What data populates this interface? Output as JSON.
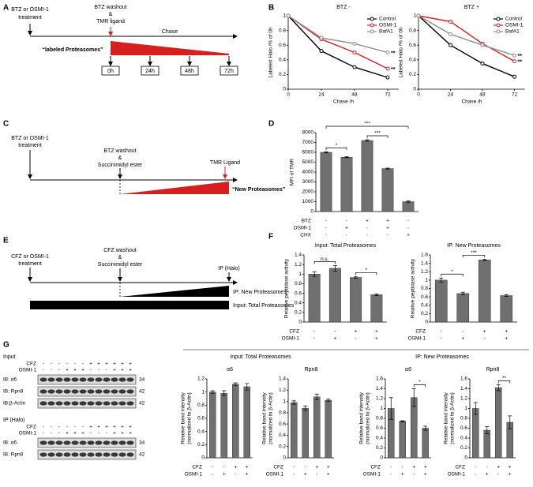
{
  "panel_letters": [
    "A",
    "B",
    "C",
    "D",
    "E",
    "F",
    "G"
  ],
  "diagram_a": {
    "start_label": [
      "BTZ or OSMI-1",
      "treatment"
    ],
    "washout_label": [
      "BTZ washout",
      "&",
      "TMR ligand"
    ],
    "chase": "Chase",
    "wedge_label": "“labeled Proteasomes”",
    "timepoints": [
      "0h",
      "24h",
      "48h",
      "72h"
    ]
  },
  "diagram_c": {
    "start_label": [
      "BTZ or OSMI-1",
      "treatment"
    ],
    "washout_label": [
      "BTZ washout",
      "&",
      "Succinimidyl ester"
    ],
    "end_label": "TMR Ligand",
    "wedge_label": "“New Proteasomes”"
  },
  "diagram_e": {
    "start_label": [
      "CFZ or OSMI-1",
      "treatment"
    ],
    "washout_label": [
      "CFZ washout",
      "&",
      "Succinimidyl ester"
    ],
    "end_label": "IP (Halo)",
    "wedge_label": "IP: New Proteasomes",
    "bar_label": "Input: Total Proteasomes"
  },
  "blot_g": {
    "sections": [
      {
        "title": "Input",
        "conditions": [
          {
            "name": "CFZ",
            "signs": [
              "-",
              "-",
              "-",
              "-",
              "-",
              "-",
              "+",
              "+",
              "+",
              "+",
              "+",
              "+"
            ]
          },
          {
            "name": "OSMI-1",
            "signs": [
              "-",
              "-",
              "-",
              "+",
              "+",
              "+",
              "-",
              "-",
              "-",
              "+",
              "+",
              "+"
            ]
          }
        ],
        "rows": [
          {
            "label": "IB: α6",
            "mw": "34"
          },
          {
            "label": "IB: Rpn8",
            "mw": "42"
          },
          {
            "label": "IB:β-Actin",
            "mw": "42"
          }
        ]
      },
      {
        "title": "IP (Halo)",
        "conditions": [
          {
            "name": "CFZ",
            "signs": [
              "-",
              "-",
              "-",
              "-",
              "-",
              "-",
              "+",
              "+",
              "+",
              "+",
              "+",
              "+"
            ]
          },
          {
            "name": "OSMI-1",
            "signs": [
              "-",
              "-",
              "-",
              "+",
              "+",
              "+",
              "-",
              "-",
              "-",
              "+",
              "+",
              "+"
            ]
          }
        ],
        "rows": [
          {
            "label": "IB: α6",
            "mw": "34"
          },
          {
            "label": "IB: Rpn8",
            "mw": "42"
          }
        ]
      }
    ]
  },
  "g_group_titles": [
    "Input: Total Proteasomes",
    "IP: New Proteasomes"
  ],
  "chart_data": [
    {
      "type": "line",
      "title": "BTZ -",
      "xlabel": "Chase /h",
      "ylabel": "Labeled Halo /% of 0h",
      "x": [
        0,
        24,
        48,
        72
      ],
      "xlim": [
        0,
        80
      ],
      "xticks": [
        0,
        24,
        48,
        72
      ],
      "ylim": [
        0,
        1
      ],
      "yticks": [
        0,
        0.2,
        0.4,
        0.6,
        0.8,
        1
      ],
      "legend": "upper right",
      "series": [
        {
          "name": "Control",
          "color": "#000000",
          "values": [
            1,
            0.52,
            0.3,
            0.16
          ]
        },
        {
          "name": "OSMI-1",
          "color": "#d62020",
          "values": [
            1,
            0.68,
            0.5,
            0.28
          ],
          "end_label": "**"
        },
        {
          "name": "BafA1",
          "color": "#8c8c8c",
          "values": [
            1,
            0.7,
            0.62,
            0.5
          ],
          "end_label": "**"
        }
      ]
    },
    {
      "type": "line",
      "title": "BTZ +",
      "xlabel": "Chase /h",
      "ylabel": "Labeled Halo /% of 0h",
      "x": [
        0,
        24,
        48,
        72
      ],
      "xlim": [
        0,
        80
      ],
      "xticks": [
        0,
        24,
        48,
        72
      ],
      "ylim": [
        0,
        1
      ],
      "yticks": [
        0,
        0.2,
        0.4,
        0.6,
        0.8,
        1
      ],
      "legend": "upper right",
      "series": [
        {
          "name": "Control",
          "color": "#000000",
          "values": [
            1,
            0.6,
            0.35,
            0.17
          ]
        },
        {
          "name": "OSMI-1",
          "color": "#d62020",
          "values": [
            1,
            0.92,
            0.62,
            0.38
          ],
          "end_label": "**"
        },
        {
          "name": "BafA1",
          "color": "#8c8c8c",
          "values": [
            1,
            0.75,
            0.6,
            0.46
          ],
          "end_label": "**"
        }
      ]
    },
    {
      "type": "bar",
      "ylabel": "MFI of TMR",
      "ylim": [
        0,
        8000
      ],
      "yticks": [
        0,
        1000,
        2000,
        3000,
        4000,
        5000,
        6000,
        7000,
        8000
      ],
      "color": "#707070",
      "values": [
        6000,
        5500,
        7200,
        4350,
        1000
      ],
      "errors": [
        60,
        50,
        80,
        50,
        80
      ],
      "conditions": [
        {
          "name": "BTZ",
          "signs": [
            "-",
            "-",
            "+",
            "+",
            "-"
          ]
        },
        {
          "name": "OSMI-1",
          "signs": [
            "-",
            "+",
            "-",
            "+",
            "-"
          ]
        },
        {
          "name": "CHX",
          "signs": [
            "-",
            "-",
            "-",
            "-",
            "+"
          ]
        }
      ],
      "significance": [
        {
          "pair": [
            0,
            1
          ],
          "label": "*"
        },
        {
          "pair": [
            2,
            3
          ],
          "label": "***"
        },
        {
          "pair": [
            0,
            4
          ],
          "label": "***"
        }
      ]
    },
    {
      "type": "bar",
      "title": "Input: Total Proteasomes",
      "ylabel": "Relative peptidase activity",
      "ylim": [
        0,
        1.4
      ],
      "yticks": [
        0,
        0.2,
        0.4,
        0.6,
        0.8,
        1,
        1.2,
        1.4
      ],
      "color": "#707070",
      "values": [
        1.0,
        1.12,
        0.93,
        0.57
      ],
      "errors": [
        0.05,
        0.06,
        0.02,
        0.02
      ],
      "conditions": [
        {
          "name": "CFZ",
          "signs": [
            "-",
            "-",
            "+",
            "+"
          ]
        },
        {
          "name": "OSMI-1",
          "signs": [
            "-",
            "+",
            "-",
            "+"
          ]
        }
      ],
      "significance": [
        {
          "pair": [
            0,
            1
          ],
          "label": "n.s."
        },
        {
          "pair": [
            2,
            3
          ],
          "label": "*"
        }
      ]
    },
    {
      "type": "bar",
      "title": "IP: New Proteasomes",
      "ylabel": "Relative peptidase activity",
      "ylim": [
        0,
        1.6
      ],
      "yticks": [
        0,
        0.2,
        0.4,
        0.6,
        0.8,
        1,
        1.2,
        1.4,
        1.6
      ],
      "color": "#707070",
      "values": [
        1.0,
        0.68,
        1.48,
        0.63
      ],
      "errors": [
        0.05,
        0.03,
        0.02,
        0.02
      ],
      "conditions": [
        {
          "name": "CFZ",
          "signs": [
            "-",
            "-",
            "+",
            "+"
          ]
        },
        {
          "name": "OSMI-1",
          "signs": [
            "-",
            "+",
            "-",
            "+"
          ]
        }
      ],
      "significance": [
        {
          "pair": [
            0,
            1
          ],
          "label": "*"
        },
        {
          "pair": [
            1,
            2
          ],
          "label": "***"
        }
      ]
    },
    {
      "type": "bar",
      "title": "α6",
      "ylabel": [
        "Relative band intensity",
        "(normalized to β-Actin)"
      ],
      "ylim": [
        0,
        1.2
      ],
      "yticks": [
        0,
        0.2,
        0.4,
        0.6,
        0.8,
        1,
        1.2
      ],
      "color": "#707070",
      "values": [
        1.0,
        0.98,
        1.12,
        1.08
      ],
      "errors": [
        0.02,
        0.04,
        0.02,
        0.05
      ],
      "conditions": [
        {
          "name": "CFZ",
          "signs": [
            "-",
            "-",
            "+",
            "+"
          ]
        },
        {
          "name": "OSMI-1",
          "signs": [
            "-",
            "+",
            "-",
            "+"
          ]
        }
      ]
    },
    {
      "type": "bar",
      "title": "Rpn8",
      "ylabel": [
        "Relative band intensity",
        "(normalized to β-Actin)"
      ],
      "ylim": [
        0,
        1.4
      ],
      "yticks": [
        0,
        0.2,
        0.4,
        0.6,
        0.8,
        1,
        1.2,
        1.4
      ],
      "color": "#707070",
      "values": [
        0.98,
        0.88,
        1.08,
        1.02
      ],
      "errors": [
        0.03,
        0.04,
        0.05,
        0.02
      ],
      "conditions": [
        {
          "name": "CFZ",
          "signs": [
            "-",
            "-",
            "+",
            "+"
          ]
        },
        {
          "name": "OSMI-1",
          "signs": [
            "-",
            "+",
            "-",
            "+"
          ]
        }
      ]
    },
    {
      "type": "bar",
      "title": "α6",
      "ylabel": [
        "Relative band intensity",
        "(normalized to β-Actin)"
      ],
      "ylim": [
        0,
        1.6
      ],
      "yticks": [
        0,
        0.2,
        0.4,
        0.6,
        0.8,
        1,
        1.2,
        1.4,
        1.6
      ],
      "color": "#707070",
      "values": [
        1.0,
        0.74,
        1.22,
        0.6
      ],
      "errors": [
        0.22,
        0.01,
        0.18,
        0.04
      ],
      "conditions": [
        {
          "name": "CFZ",
          "signs": [
            "-",
            "-",
            "+",
            "+"
          ]
        },
        {
          "name": "OSMI-1",
          "signs": [
            "-",
            "+",
            "-",
            "+"
          ]
        }
      ],
      "significance": [
        {
          "pair": [
            2,
            3
          ],
          "label": "*"
        }
      ]
    },
    {
      "type": "bar",
      "title": "Rpn8",
      "ylabel": [
        "Relative band intensity",
        "(normalized to β-Actin)"
      ],
      "ylim": [
        0,
        1.6
      ],
      "yticks": [
        0,
        0.2,
        0.4,
        0.6,
        0.8,
        1,
        1.2,
        1.4,
        1.6
      ],
      "color": "#707070",
      "values": [
        1.0,
        0.56,
        1.42,
        0.72
      ],
      "errors": [
        0.12,
        0.07,
        0.06,
        0.13
      ],
      "conditions": [
        {
          "name": "CFZ",
          "signs": [
            "-",
            "-",
            "+",
            "+"
          ]
        },
        {
          "name": "OSMI-1",
          "signs": [
            "-",
            "+",
            "-",
            "+"
          ]
        }
      ],
      "significance": [
        {
          "pair": [
            2,
            3
          ],
          "label": "**"
        }
      ]
    }
  ]
}
